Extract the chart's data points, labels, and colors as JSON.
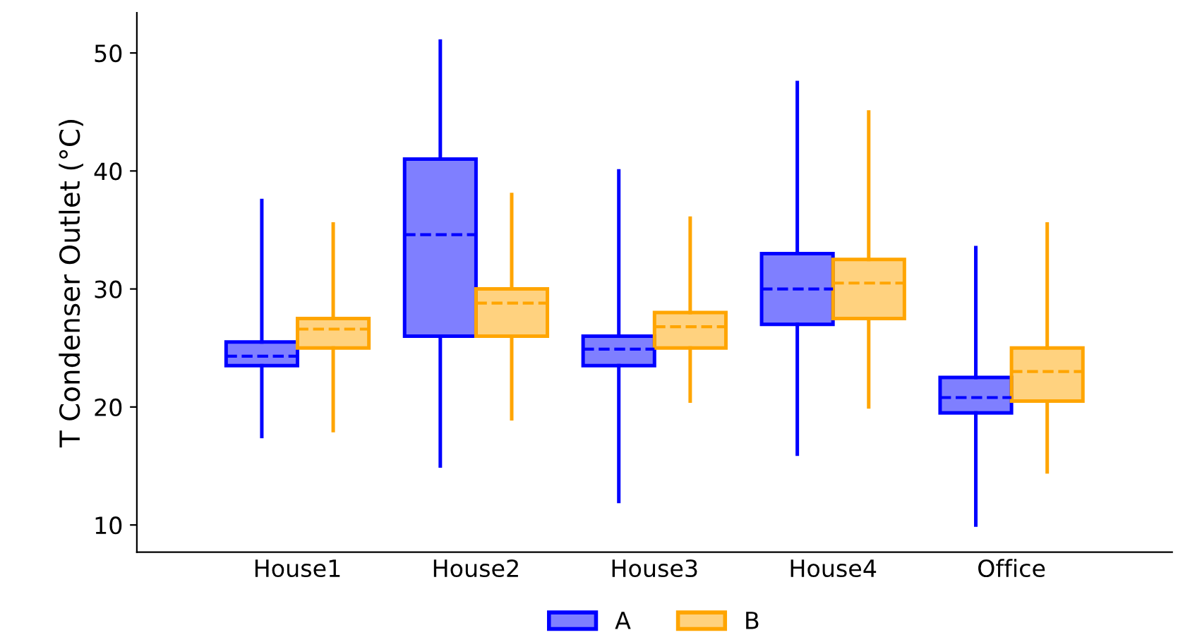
{
  "chart_data": {
    "type": "box",
    "ylabel": "T Condenser Outlet (°C)",
    "categories": [
      "House1",
      "House2",
      "House3",
      "House4",
      "Office"
    ],
    "series": [
      {
        "name": "A",
        "color": "#0000ff",
        "boxes": [
          {
            "low": 17.5,
            "q1": 23.5,
            "median": 24.3,
            "q3": 25.5,
            "high": 37.5
          },
          {
            "low": 15,
            "q1": 26,
            "median": 34.6,
            "q3": 41,
            "high": 51
          },
          {
            "low": 12,
            "q1": 23.5,
            "median": 24.9,
            "q3": 26,
            "high": 40
          },
          {
            "low": 16,
            "q1": 27,
            "median": 30,
            "q3": 33,
            "high": 47.5
          },
          {
            "low": 10,
            "q1": 19.5,
            "median": 20.8,
            "q3": 22.5,
            "high": 33.5
          }
        ]
      },
      {
        "name": "B",
        "color": "#ffa500",
        "boxes": [
          {
            "low": 18,
            "q1": 25,
            "median": 26.6,
            "q3": 27.5,
            "high": 35.5
          },
          {
            "low": 19,
            "q1": 26,
            "median": 28.8,
            "q3": 30,
            "high": 38
          },
          {
            "low": 20.5,
            "q1": 25,
            "median": 26.8,
            "q3": 28,
            "high": 36
          },
          {
            "low": 20,
            "q1": 27.5,
            "median": 30.5,
            "q3": 32.5,
            "high": 45
          },
          {
            "low": 14.5,
            "q1": 20.5,
            "median": 23,
            "q3": 25,
            "high": 35.5
          }
        ]
      }
    ],
    "ylim": [
      7.7,
      53.4
    ],
    "yticks": [
      10,
      20,
      30,
      40,
      50
    ],
    "grid": false,
    "legend": "bottom",
    "line_style": "dashed"
  }
}
